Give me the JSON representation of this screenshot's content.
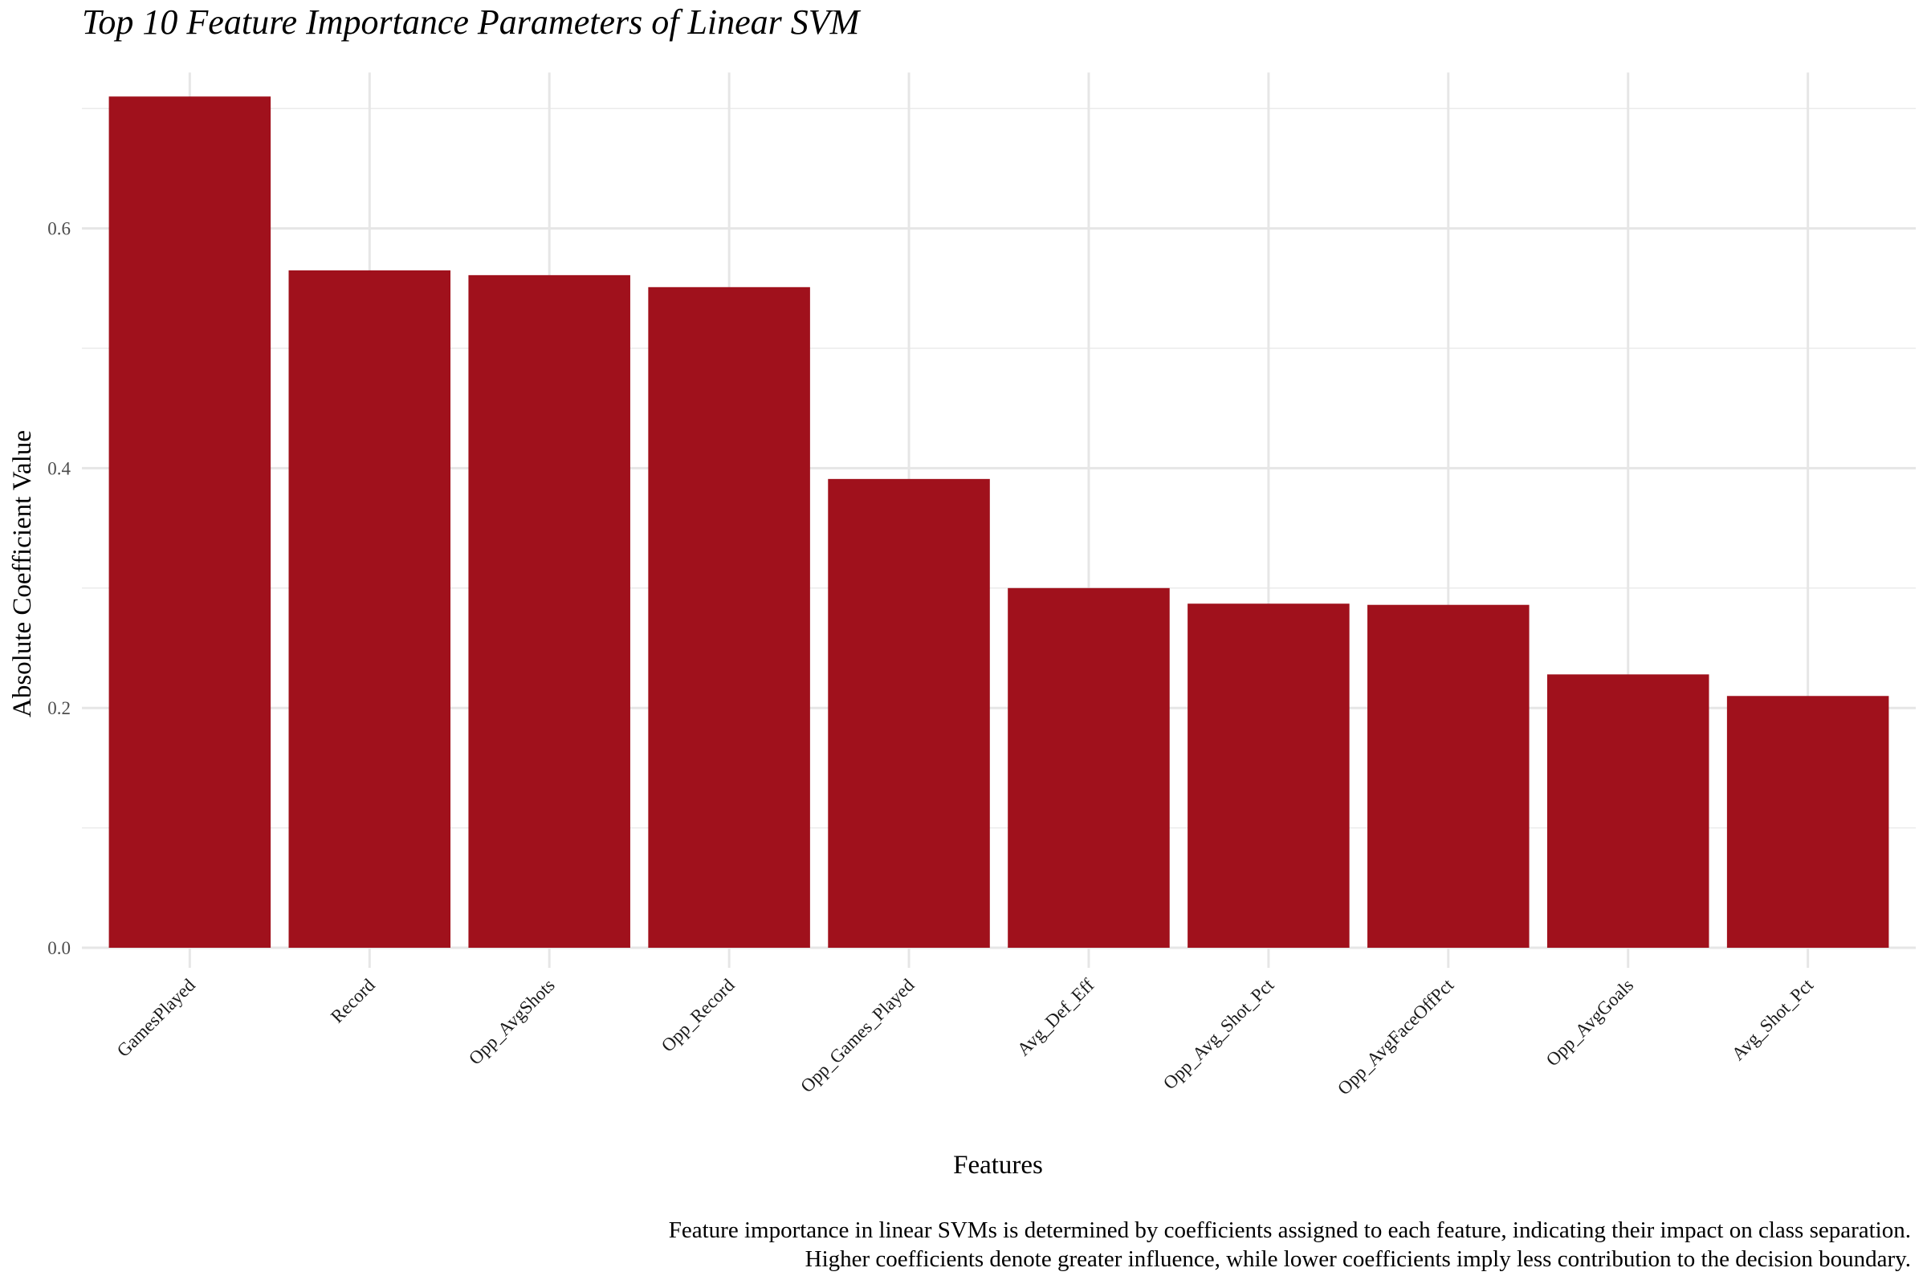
{
  "chart_data": {
    "type": "bar",
    "title": "Top 10 Feature Importance Parameters of Linear SVM",
    "xlabel": "Features",
    "ylabel": "Absolute Coefficient Value",
    "categories": [
      "GamesPlayed",
      "Record",
      "Opp_AvgShots",
      "Opp_Record",
      "Opp_Games_Played",
      "Avg_Def_Eff",
      "Opp_Avg_Shot_Pct",
      "Opp_AvgFaceOffPct",
      "Opp_AvgGoals",
      "Avg_Shot_Pct"
    ],
    "values": [
      0.71,
      0.565,
      0.561,
      0.551,
      0.391,
      0.3,
      0.287,
      0.286,
      0.228,
      0.21
    ],
    "ylim": [
      0,
      0.73
    ],
    "yticks": [
      0.0,
      0.2,
      0.4,
      0.6
    ],
    "ytick_labels": [
      "0.0",
      "0.2",
      "0.4",
      "0.6"
    ],
    "bar_color": "#A0111C",
    "grid": true,
    "legend": "none",
    "caption": [
      "Feature importance in linear SVMs is determined by coefficients assigned to each feature, indicating their impact on class separation.",
      "Higher coefficients denote greater influence, while lower coefficients imply less contribution to the decision boundary."
    ]
  }
}
